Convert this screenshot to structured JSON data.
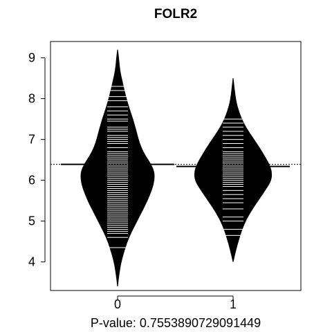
{
  "chart_data": {
    "type": "beanplot",
    "title": "FOLR2",
    "xlabel": "P-value: 0.7553890729091449",
    "categories": [
      "0",
      "1"
    ],
    "ylim": [
      3.3,
      9.4
    ],
    "yticks": [
      "4",
      "5",
      "6",
      "7",
      "8",
      "9"
    ],
    "overall_mean": 6.39,
    "series": [
      {
        "category": "0",
        "mean": 6.39,
        "min": 3.4,
        "max": 9.2,
        "density": [
          {
            "y": 3.4,
            "w": 0.0
          },
          {
            "y": 3.7,
            "w": 0.02
          },
          {
            "y": 4.0,
            "w": 0.05
          },
          {
            "y": 4.3,
            "w": 0.1
          },
          {
            "y": 4.6,
            "w": 0.16
          },
          {
            "y": 4.9,
            "w": 0.25
          },
          {
            "y": 5.2,
            "w": 0.34
          },
          {
            "y": 5.5,
            "w": 0.43
          },
          {
            "y": 5.8,
            "w": 0.5
          },
          {
            "y": 6.0,
            "w": 0.53
          },
          {
            "y": 6.2,
            "w": 0.53
          },
          {
            "y": 6.4,
            "w": 0.48
          },
          {
            "y": 6.6,
            "w": 0.4
          },
          {
            "y": 6.8,
            "w": 0.34
          },
          {
            "y": 7.0,
            "w": 0.3
          },
          {
            "y": 7.2,
            "w": 0.27
          },
          {
            "y": 7.5,
            "w": 0.22
          },
          {
            "y": 7.8,
            "w": 0.16
          },
          {
            "y": 8.1,
            "w": 0.11
          },
          {
            "y": 8.4,
            "w": 0.07
          },
          {
            "y": 8.7,
            "w": 0.03
          },
          {
            "y": 9.0,
            "w": 0.015
          },
          {
            "y": 9.2,
            "w": 0.0
          }
        ],
        "points": [
          4.35,
          4.6,
          4.7,
          4.75,
          4.8,
          4.85,
          4.9,
          4.95,
          5.0,
          5.05,
          5.1,
          5.15,
          5.2,
          5.25,
          5.3,
          5.35,
          5.4,
          5.45,
          5.5,
          5.55,
          5.6,
          5.65,
          5.7,
          5.75,
          5.8,
          5.85,
          5.9,
          5.95,
          6.0,
          6.05,
          6.1,
          6.15,
          6.2,
          6.25,
          6.3,
          6.35,
          6.4,
          6.45,
          6.5,
          6.55,
          6.6,
          6.65,
          6.7,
          6.8,
          6.9,
          6.95,
          7.0,
          7.05,
          7.1,
          7.2,
          7.25,
          7.3,
          7.45,
          7.5,
          7.6,
          7.7,
          7.8,
          7.95,
          8.05,
          8.2,
          8.3
        ]
      },
      {
        "category": "1",
        "mean": 6.34,
        "min": 4.0,
        "max": 8.5,
        "density": [
          {
            "y": 4.0,
            "w": 0.0
          },
          {
            "y": 4.3,
            "w": 0.04
          },
          {
            "y": 4.6,
            "w": 0.09
          },
          {
            "y": 4.9,
            "w": 0.15
          },
          {
            "y": 5.2,
            "w": 0.24
          },
          {
            "y": 5.5,
            "w": 0.36
          },
          {
            "y": 5.8,
            "w": 0.48
          },
          {
            "y": 6.0,
            "w": 0.55
          },
          {
            "y": 6.2,
            "w": 0.56
          },
          {
            "y": 6.4,
            "w": 0.52
          },
          {
            "y": 6.6,
            "w": 0.45
          },
          {
            "y": 6.8,
            "w": 0.38
          },
          {
            "y": 7.0,
            "w": 0.3
          },
          {
            "y": 7.2,
            "w": 0.22
          },
          {
            "y": 7.4,
            "w": 0.15
          },
          {
            "y": 7.6,
            "w": 0.1
          },
          {
            "y": 7.8,
            "w": 0.06
          },
          {
            "y": 8.0,
            "w": 0.035
          },
          {
            "y": 8.2,
            "w": 0.02
          },
          {
            "y": 8.5,
            "w": 0.0
          }
        ],
        "points": [
          4.65,
          4.8,
          5.0,
          5.1,
          5.3,
          5.45,
          5.55,
          5.65,
          5.75,
          5.85,
          5.9,
          5.95,
          6.0,
          6.05,
          6.1,
          6.15,
          6.2,
          6.25,
          6.3,
          6.35,
          6.4,
          6.45,
          6.5,
          6.55,
          6.6,
          6.65,
          6.7,
          6.8,
          6.9,
          7.0,
          7.1,
          7.2,
          7.3,
          7.4,
          7.5
        ]
      }
    ],
    "colors": {
      "bean_fill": "#000000",
      "point_line": "#ffffff",
      "axis": "#000000",
      "background": "#ffffff"
    }
  }
}
